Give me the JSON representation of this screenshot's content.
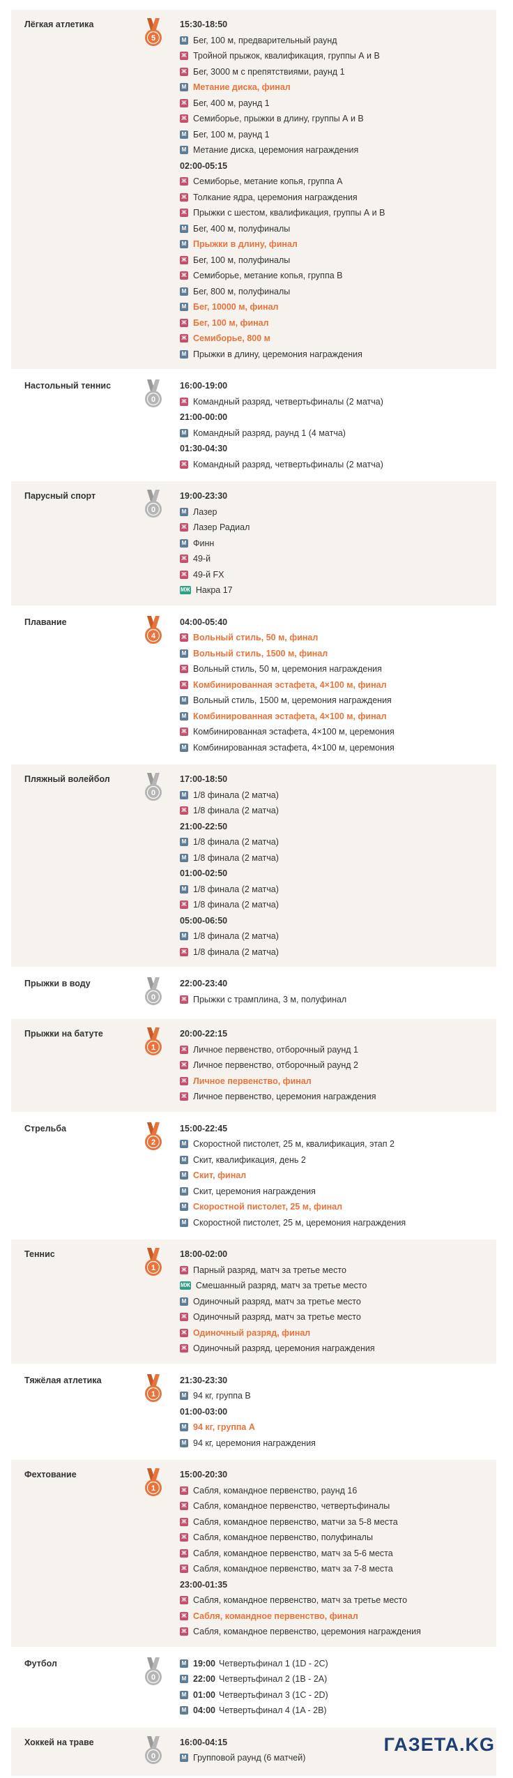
{
  "sports": [
    {
      "name": "Лёгкая атлетика",
      "medals": 5,
      "schedule": [
        {
          "time": "15:30-18:50"
        },
        {
          "g": "М",
          "text": "Бег, 100 м, предварительный раунд"
        },
        {
          "g": "Ж",
          "text": "Тройной прыжок, квалификация, группы А и В"
        },
        {
          "g": "Ж",
          "text": "Бег, 3000 м с препятствиями, раунд 1"
        },
        {
          "g": "М",
          "text": "Метание диска, финал",
          "final": true
        },
        {
          "g": "Ж",
          "text": "Бег, 400 м, раунд 1"
        },
        {
          "g": "Ж",
          "text": "Семиборье, прыжки в длину, группы А и В"
        },
        {
          "g": "М",
          "text": "Бег, 100 м, раунд 1"
        },
        {
          "g": "М",
          "text": "Метание диска, церемония награждения"
        },
        {
          "time": "02:00-05:15"
        },
        {
          "g": "Ж",
          "text": "Семиборье, метание копья, группа А"
        },
        {
          "g": "Ж",
          "text": "Толкание ядра, церемония награждения"
        },
        {
          "g": "Ж",
          "text": "Прыжки с шестом, квалификация, группы А и В"
        },
        {
          "g": "М",
          "text": "Бег, 400 м, полуфиналы"
        },
        {
          "g": "М",
          "text": "Прыжки в длину, финал",
          "final": true
        },
        {
          "g": "Ж",
          "text": "Бег, 100 м, полуфиналы"
        },
        {
          "g": "Ж",
          "text": "Семиборье, метание копья, группа В"
        },
        {
          "g": "М",
          "text": "Бег, 800 м, полуфиналы"
        },
        {
          "g": "М",
          "text": "Бег, 10000 м, финал",
          "final": true
        },
        {
          "g": "Ж",
          "text": "Бег, 100 м, финал",
          "final": true
        },
        {
          "g": "Ж",
          "text": "Семиборье, 800 м",
          "final": true
        },
        {
          "g": "М",
          "text": "Прыжки в длину, церемония награждения"
        }
      ]
    },
    {
      "name": "Настольный теннис",
      "medals": 0,
      "schedule": [
        {
          "time": "16:00-19:00"
        },
        {
          "g": "Ж",
          "text": "Командный разряд, четвертьфиналы (2 матча)"
        },
        {
          "time": "21:00-00:00"
        },
        {
          "g": "М",
          "text": "Командный разряд, раунд 1 (4 матча)"
        },
        {
          "time": "01:30-04:30"
        },
        {
          "g": "Ж",
          "text": "Командный разряд, четвертьфиналы (2 матча)"
        }
      ]
    },
    {
      "name": "Парусный спорт",
      "medals": 0,
      "schedule": [
        {
          "time": "19:00-23:30"
        },
        {
          "g": "М",
          "text": "Лазер"
        },
        {
          "g": "Ж",
          "text": "Лазер Радиал"
        },
        {
          "g": "М",
          "text": "Финн"
        },
        {
          "g": "Ж",
          "text": "49-й"
        },
        {
          "g": "Ж",
          "text": "49-й FX"
        },
        {
          "g": "МЖ",
          "text": "Накра 17"
        }
      ]
    },
    {
      "name": "Плавание",
      "medals": 4,
      "schedule": [
        {
          "time": "04:00-05:40"
        },
        {
          "g": "Ж",
          "text": "Вольный стиль, 50 м, финал",
          "final": true
        },
        {
          "g": "М",
          "text": "Вольный стиль, 1500 м, финал",
          "final": true
        },
        {
          "g": "Ж",
          "text": "Вольный стиль, 50 м, церемония награждения"
        },
        {
          "g": "Ж",
          "text": "Комбинированная эстафета, 4×100 м, финал",
          "final": true
        },
        {
          "g": "М",
          "text": "Вольный стиль, 1500 м, церемония награждения"
        },
        {
          "g": "М",
          "text": "Комбинированная эстафета, 4×100 м, финал",
          "final": true
        },
        {
          "g": "Ж",
          "text": "Комбинированная эстафета, 4×100 м, церемония"
        },
        {
          "g": "М",
          "text": "Комбинированная эстафета, 4×100 м, церемония"
        }
      ]
    },
    {
      "name": "Пляжный волейбол",
      "medals": 0,
      "schedule": [
        {
          "time": "17:00-18:50"
        },
        {
          "g": "М",
          "text": "1/8 финала (2 матча)"
        },
        {
          "g": "Ж",
          "text": "1/8 финала (2 матча)"
        },
        {
          "time": "21:00-22:50"
        },
        {
          "g": "М",
          "text": "1/8 финала (2 матча)"
        },
        {
          "g": "М",
          "text": "1/8 финала (2 матча)"
        },
        {
          "time": "01:00-02:50"
        },
        {
          "g": "М",
          "text": "1/8 финала (2 матча)"
        },
        {
          "g": "Ж",
          "text": "1/8 финала (2 матча)"
        },
        {
          "time": "05:00-06:50"
        },
        {
          "g": "М",
          "text": "1/8 финала (2 матча)"
        },
        {
          "g": "Ж",
          "text": "1/8 финала (2 матча)"
        }
      ]
    },
    {
      "name": "Прыжки в воду",
      "medals": 0,
      "schedule": [
        {
          "time": "22:00-23:40"
        },
        {
          "g": "Ж",
          "text": "Прыжки с трамплина, 3 м, полуфинал"
        }
      ]
    },
    {
      "name": "Прыжки на батуте",
      "medals": 1,
      "schedule": [
        {
          "time": "20:00-22:15"
        },
        {
          "g": "Ж",
          "text": "Личное первенство, отборочный раунд 1"
        },
        {
          "g": "Ж",
          "text": "Личное первенство, отборочный раунд 2"
        },
        {
          "g": "Ж",
          "text": "Личное первенство, финал",
          "final": true
        },
        {
          "g": "Ж",
          "text": "Личное первенство, церемония награждения"
        }
      ]
    },
    {
      "name": "Стрельба",
      "medals": 2,
      "schedule": [
        {
          "time": "15:00-22:45"
        },
        {
          "g": "М",
          "text": "Скоростной пистолет, 25 м, квалификация, этап 2"
        },
        {
          "g": "М",
          "text": "Скит, квалификация, день 2"
        },
        {
          "g": "М",
          "text": "Скит, финал",
          "final": true
        },
        {
          "g": "М",
          "text": "Скит, церемония награждения"
        },
        {
          "g": "М",
          "text": "Скоростной пистолет, 25 м, финал",
          "final": true
        },
        {
          "g": "М",
          "text": "Скоростной пистолет, 25 м, церемония награждения"
        }
      ]
    },
    {
      "name": "Теннис",
      "medals": 1,
      "schedule": [
        {
          "time": "18:00-02:00"
        },
        {
          "g": "Ж",
          "text": "Парный разряд, матч за третье место"
        },
        {
          "g": "МЖ",
          "text": "Смешанный разряд, матч за третье место"
        },
        {
          "g": "М",
          "text": "Одиночный разряд, матч за третье место"
        },
        {
          "g": "Ж",
          "text": "Одиночный разряд, матч за третье место"
        },
        {
          "g": "Ж",
          "text": "Одиночный разряд, финал",
          "final": true
        },
        {
          "g": "Ж",
          "text": "Одиночный разряд, церемония награждения"
        }
      ]
    },
    {
      "name": "Тяжёлая атлетика",
      "medals": 1,
      "schedule": [
        {
          "time": "21:30-23:30"
        },
        {
          "g": "М",
          "text": "94 кг, группа В"
        },
        {
          "time": "01:00-03:00"
        },
        {
          "g": "М",
          "text": "94 кг, группа А",
          "final": true
        },
        {
          "g": "М",
          "text": "94 кг, церемония награждения"
        }
      ]
    },
    {
      "name": "Фехтование",
      "medals": 1,
      "schedule": [
        {
          "time": "15:00-20:30"
        },
        {
          "g": "Ж",
          "text": "Сабля, командное первенство, раунд 16"
        },
        {
          "g": "Ж",
          "text": "Сабля, командное первенство, четвертьфиналы"
        },
        {
          "g": "Ж",
          "text": "Сабля, командное первенство, матчи за 5-8 места"
        },
        {
          "g": "Ж",
          "text": "Сабля, командное первенство, полуфиналы"
        },
        {
          "g": "Ж",
          "text": "Сабля, командное первенство, матч за 5-6 места"
        },
        {
          "g": "Ж",
          "text": "Сабля, командное первенство, матч за 7-8 места"
        },
        {
          "time": "23:00-01:35"
        },
        {
          "g": "Ж",
          "text": "Сабля, командное первенство, матч за третье место"
        },
        {
          "g": "Ж",
          "text": "Сабля, командное первенство, финал",
          "final": true
        },
        {
          "g": "Ж",
          "text": "Сабля, командное первенство, церемония награждения"
        }
      ]
    },
    {
      "name": "Футбол",
      "medals": 0,
      "schedule": [
        {
          "g": "М",
          "t": "19:00",
          "text": "Четвертьфинал 1 (1D - 2C)"
        },
        {
          "g": "М",
          "t": "22:00",
          "text": "Четвертьфинал 2 (1B - 2A)"
        },
        {
          "g": "М",
          "t": "01:00",
          "text": "Четвертьфинал 3 (1C - 2D)"
        },
        {
          "g": "М",
          "t": "04:00",
          "text": "Четвертьфинал 4 (1A - 2B)"
        }
      ]
    },
    {
      "name": "Хоккей на траве",
      "medals": 0,
      "schedule": [
        {
          "time": "16:00-04:15"
        },
        {
          "g": "М",
          "text": "Групповой раунд (6 матчей)"
        }
      ]
    }
  ],
  "logo": "ГАЗЕТА.KG"
}
